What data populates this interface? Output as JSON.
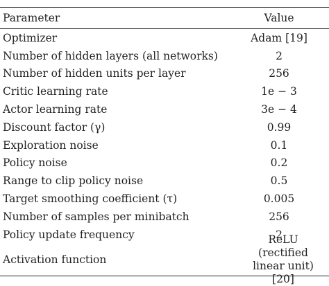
{
  "table": {
    "headers": {
      "parameter": "Parameter",
      "value": "Value"
    },
    "rows": [
      {
        "parameter": "Optimizer",
        "value": "Adam [19]"
      },
      {
        "parameter": "Number of hidden layers (all networks)",
        "value": "2"
      },
      {
        "parameter": "Number of hidden units per layer",
        "value": "256"
      },
      {
        "parameter": "Critic learning rate",
        "value": "1e − 3"
      },
      {
        "parameter": "Actor learning rate",
        "value": "3e − 4"
      },
      {
        "parameter": "Discount factor (γ)",
        "value": "0.99"
      },
      {
        "parameter": "Exploration noise",
        "value": "0.1"
      },
      {
        "parameter": "Policy noise",
        "value": "0.2"
      },
      {
        "parameter": "Range to clip policy noise",
        "value": "0.5"
      },
      {
        "parameter": "Target smoothing coefficient (τ)",
        "value": "0.005"
      },
      {
        "parameter": "Number of samples per minibatch",
        "value": "256"
      },
      {
        "parameter": "Policy update frequency",
        "value": "2"
      },
      {
        "parameter": "Activation function",
        "value": "ReLU (rectified linear unit) [20]"
      }
    ]
  }
}
